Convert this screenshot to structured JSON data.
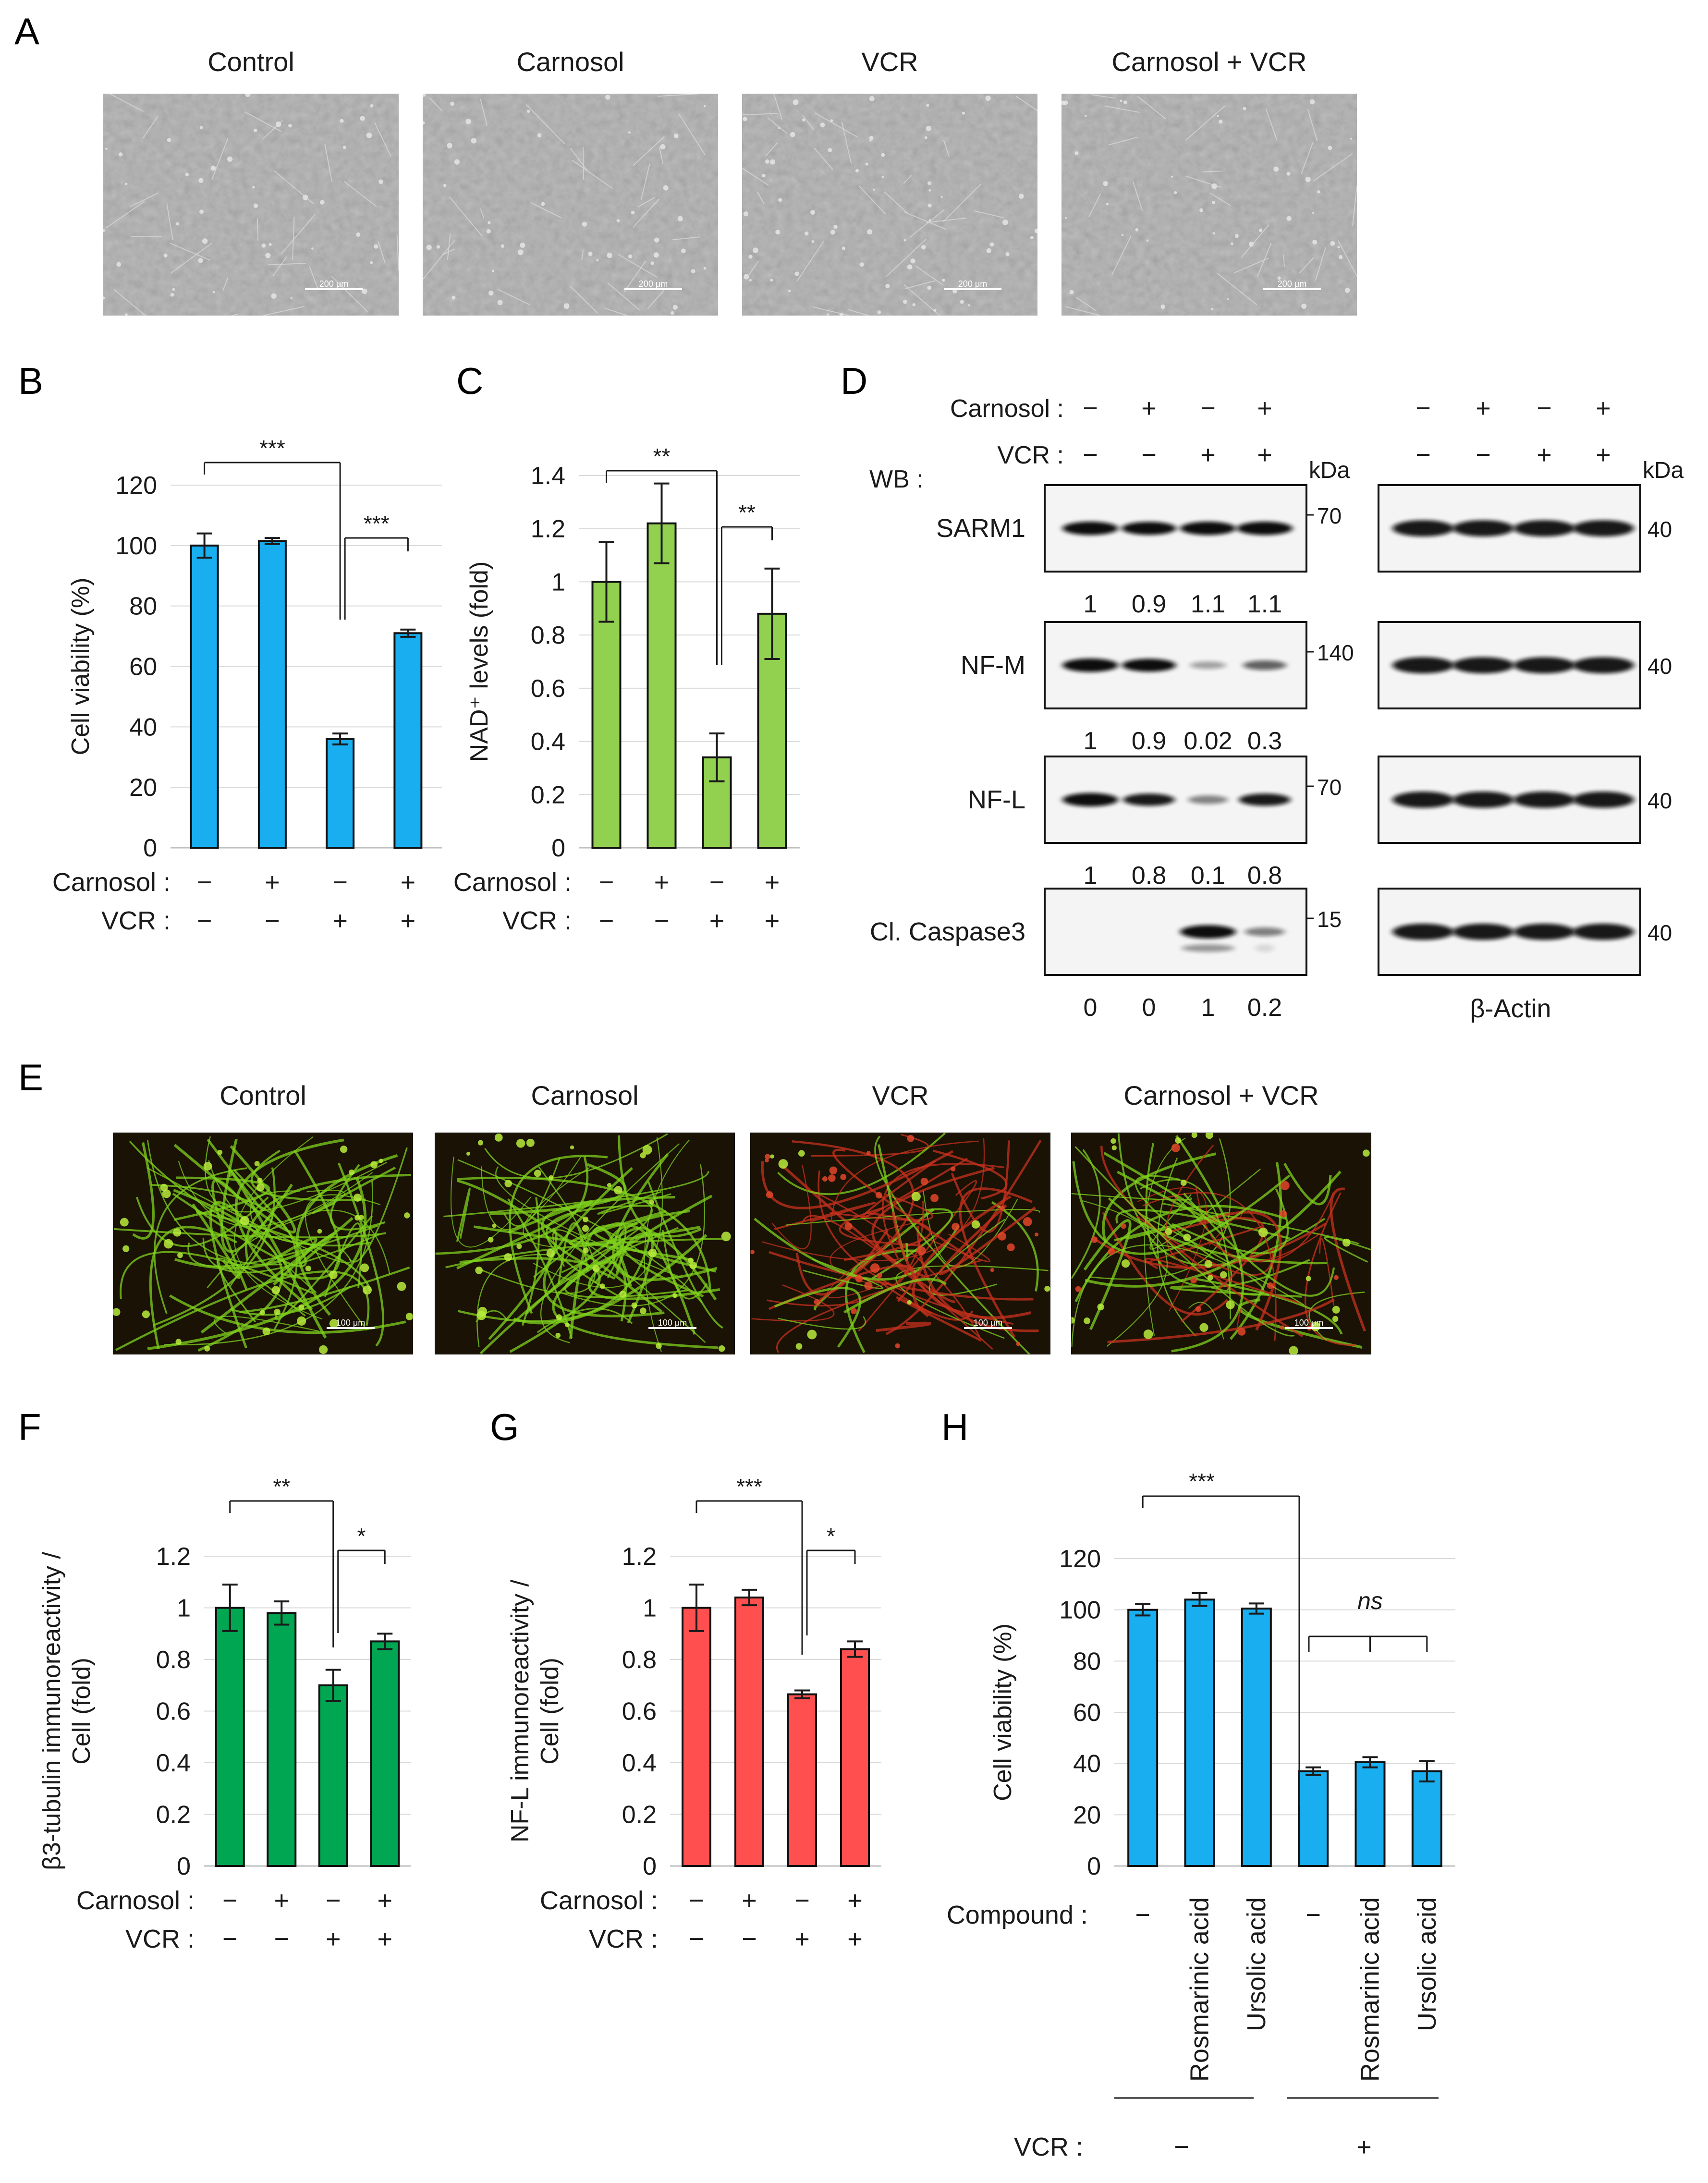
{
  "panels": {
    "A": {
      "letter": "A",
      "titles": [
        "Control",
        "Carnosol",
        "VCR",
        "Carnosol + VCR"
      ],
      "scale_bar": "200 μm"
    },
    "B": {
      "letter": "B",
      "rows": [
        {
          "label": "Carnosol :",
          "signs": [
            "−",
            "+",
            "−",
            "+"
          ]
        },
        {
          "label": "VCR :",
          "signs": [
            "−",
            "−",
            "+",
            "+"
          ]
        }
      ],
      "brackets": [
        {
          "from": 0,
          "to": 2,
          "label": "***"
        },
        {
          "from": 2,
          "to": 3,
          "label": "***"
        }
      ],
      "color": "#18aef0",
      "chart_data": {
        "type": "bar",
        "ylabel": "Cell viability (%)",
        "ylim": [
          0,
          120
        ],
        "yticks": [
          0,
          20,
          40,
          60,
          80,
          100,
          120
        ],
        "values": [
          100,
          101.5,
          36,
          71
        ],
        "errors": [
          4,
          1,
          1.8,
          1.2
        ]
      }
    },
    "C": {
      "letter": "C",
      "rows": [
        {
          "label": "Carnosol :",
          "signs": [
            "−",
            "+",
            "−",
            "+"
          ]
        },
        {
          "label": "VCR :",
          "signs": [
            "−",
            "−",
            "+",
            "+"
          ]
        }
      ],
      "brackets": [
        {
          "from": 0,
          "to": 2,
          "label": "**"
        },
        {
          "from": 2,
          "to": 3,
          "label": "**"
        }
      ],
      "color": "#92d050",
      "chart_data": {
        "type": "bar",
        "ylabel": "NAD⁺ levels (fold)",
        "ylim": [
          0,
          1.4
        ],
        "yticks": [
          "0",
          "0.2",
          "0.4",
          "0.6",
          "0.8",
          "1",
          "1.2",
          "1.4"
        ],
        "values": [
          1.0,
          1.22,
          0.34,
          0.88
        ],
        "errors": [
          0.15,
          0.15,
          0.09,
          0.17
        ]
      }
    },
    "D": {
      "letter": "D",
      "carnosol_label": "Carnosol :",
      "vcr_label": "VCR :",
      "carnosol_signs": [
        "−",
        "+",
        "−",
        "+"
      ],
      "vcr_signs": [
        "−",
        "−",
        "+",
        "+"
      ],
      "wb_label": "WB :",
      "kda": "kDa",
      "actin_label": "β-Actin",
      "blots": [
        {
          "name": "SARM1",
          "marker": "70",
          "actin_marker": "40",
          "quant": [
            "1",
            "0.9",
            "1.1",
            "1.1"
          ],
          "intensity": [
            1,
            0.95,
            1,
            1
          ]
        },
        {
          "name": "NF-M",
          "marker": "140",
          "actin_marker": "40",
          "quant": [
            "1",
            "0.9",
            "0.02",
            "0.3"
          ],
          "intensity": [
            1,
            0.92,
            0.12,
            0.45
          ]
        },
        {
          "name": "NF-L",
          "marker": "70",
          "actin_marker": "40",
          "quant": [
            "1",
            "0.8",
            "0.1",
            "0.8"
          ],
          "intensity": [
            1,
            0.82,
            0.28,
            0.82
          ]
        },
        {
          "name": "Cl. Caspase3",
          "marker": "15",
          "actin_marker": "40",
          "quant": [
            "0",
            "0",
            "1",
            "0.2"
          ],
          "intensity": [
            0,
            0,
            1,
            0.3
          ]
        }
      ]
    },
    "E": {
      "letter": "E",
      "titles": [
        "Control",
        "Carnosol",
        "VCR",
        "Carnosol + VCR"
      ],
      "scale_bar": "100 μm"
    },
    "F": {
      "letter": "F",
      "rows": [
        {
          "label": "Carnosol :",
          "signs": [
            "−",
            "+",
            "−",
            "+"
          ]
        },
        {
          "label": "VCR :",
          "signs": [
            "−",
            "−",
            "+",
            "+"
          ]
        }
      ],
      "brackets": [
        {
          "from": 0,
          "to": 2,
          "label": "**"
        },
        {
          "from": 2,
          "to": 3,
          "label": "*"
        }
      ],
      "color": "#00a651",
      "chart_data": {
        "type": "bar",
        "ylabel": [
          "β3-tubulin immunoreactivity /",
          "Cell (fold)"
        ],
        "ylim": [
          0,
          1.2
        ],
        "yticks": [
          "0",
          "0.2",
          "0.4",
          "0.6",
          "0.8",
          "1",
          "1.2"
        ],
        "values": [
          1.0,
          0.98,
          0.7,
          0.87
        ],
        "errors": [
          0.09,
          0.045,
          0.06,
          0.03
        ]
      }
    },
    "G": {
      "letter": "G",
      "rows": [
        {
          "label": "Carnosol :",
          "signs": [
            "−",
            "+",
            "−",
            "+"
          ]
        },
        {
          "label": "VCR :",
          "signs": [
            "−",
            "−",
            "+",
            "+"
          ]
        }
      ],
      "brackets": [
        {
          "from": 0,
          "to": 2,
          "label": "***"
        },
        {
          "from": 2,
          "to": 3,
          "label": "*"
        }
      ],
      "color": "#ff4f4f",
      "chart_data": {
        "type": "bar",
        "ylabel": [
          "NF-L immunoreactivity /",
          "Cell (fold)"
        ],
        "ylim": [
          0,
          1.2
        ],
        "yticks": [
          "0",
          "0.2",
          "0.4",
          "0.6",
          "0.8",
          "1",
          "1.2"
        ],
        "values": [
          1.0,
          1.04,
          0.665,
          0.84
        ],
        "errors": [
          0.09,
          0.03,
          0.015,
          0.03
        ]
      }
    },
    "H": {
      "letter": "H",
      "compound_label": "Compound :",
      "compounds": [
        "−",
        "Rosmarinic acid",
        "Ursolic acid",
        "−",
        "Rosmarinic acid",
        "Ursolic acid"
      ],
      "vcr_label": "VCR :",
      "vcr_signs": [
        "−",
        "+"
      ],
      "significance": "***",
      "ns_label": "ns",
      "color": "#18aef0",
      "chart_data": {
        "type": "bar",
        "ylabel": "Cell viability (%)",
        "ylim": [
          0,
          120
        ],
        "yticks": [
          0,
          20,
          40,
          60,
          80,
          100,
          120
        ],
        "values": [
          100,
          104,
          100.5,
          37,
          40.5,
          37
        ],
        "errors": [
          2.2,
          2.5,
          2,
          1.5,
          2,
          4
        ]
      }
    }
  }
}
